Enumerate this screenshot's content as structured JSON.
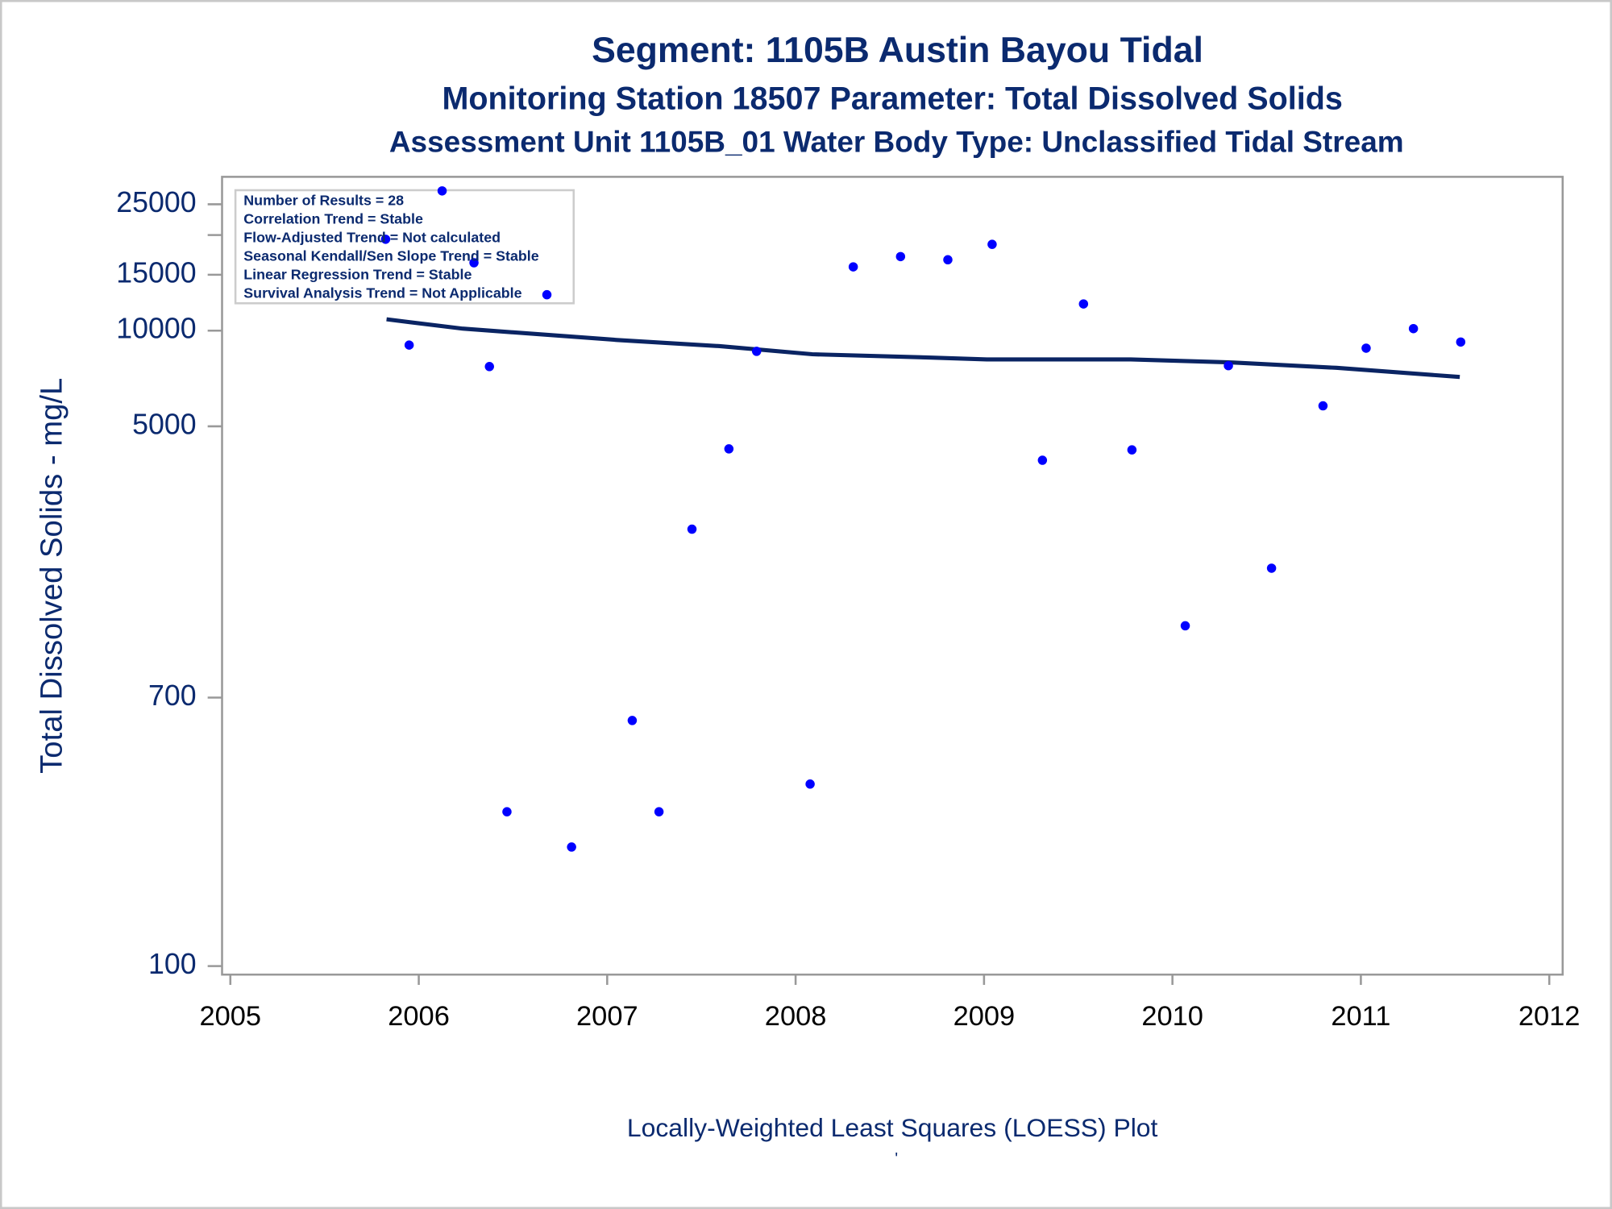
{
  "chart_data": {
    "type": "scatter",
    "title": "Segment: 1105B  Austin Bayou Tidal",
    "subtitle": "Monitoring Station 18507 Parameter: Total Dissolved Solids",
    "subtitle2": "Assessment Unit 1105B_01   Water Body Type: Unclassified Tidal Stream",
    "ylabel": "Total Dissolved Solids - mg/L",
    "footnote": "Locally-Weighted Least Squares (LOESS) Plot",
    "footmark": "'",
    "stats_box": [
      "Number of Results = 28",
      "Correlation Trend = Stable",
      "Flow-Adjusted Trend = Not calculated",
      "Seasonal Kendall/Sen Slope Trend = Stable",
      "Linear Regression Trend = Stable",
      "Survival Analysis Trend = Not Applicable"
    ],
    "x": [
      2005.824,
      2005.949,
      2006.124,
      2006.293,
      2006.375,
      2006.468,
      2006.68,
      2006.811,
      2007.133,
      2007.275,
      2007.45,
      2007.646,
      2007.793,
      2008.077,
      2008.306,
      2008.557,
      2008.808,
      2009.043,
      2009.31,
      2009.528,
      2009.785,
      2010.068,
      2010.297,
      2010.526,
      2010.799,
      2011.028,
      2011.279,
      2011.53
    ],
    "values": [
      19400,
      9010,
      27540,
      16360,
      7710,
      306,
      12980,
      237,
      593,
      306,
      2373,
      4246,
      8610,
      374,
      15880,
      17110,
      16720,
      18700,
      3910,
      12140,
      4215,
      1178,
      7760,
      1788,
      5800,
      8810,
      10150,
      9210
    ],
    "color": "#0000ff",
    "trend_line": {
      "x": [
        2005.829,
        2006.233,
        2007.051,
        2007.597,
        2008.088,
        2008.688,
        2009.015,
        2009.779,
        2010.325,
        2010.87,
        2011.525
      ],
      "values": [
        10860,
        10150,
        9350,
        8940,
        8430,
        8240,
        8120,
        8120,
        7940,
        7640,
        7150
      ],
      "color": "#0a2463"
    },
    "xlim": [
      2004.956,
      2012.071
    ],
    "xticks": [
      2005,
      2006,
      2007,
      2008,
      2009,
      2010,
      2011,
      2012
    ],
    "ylim": [
      94,
      30500
    ],
    "ylog": true,
    "yticks": [
      100,
      700,
      5000,
      10000,
      15000,
      25000
    ],
    "yminorticks": [
      20000
    ]
  }
}
